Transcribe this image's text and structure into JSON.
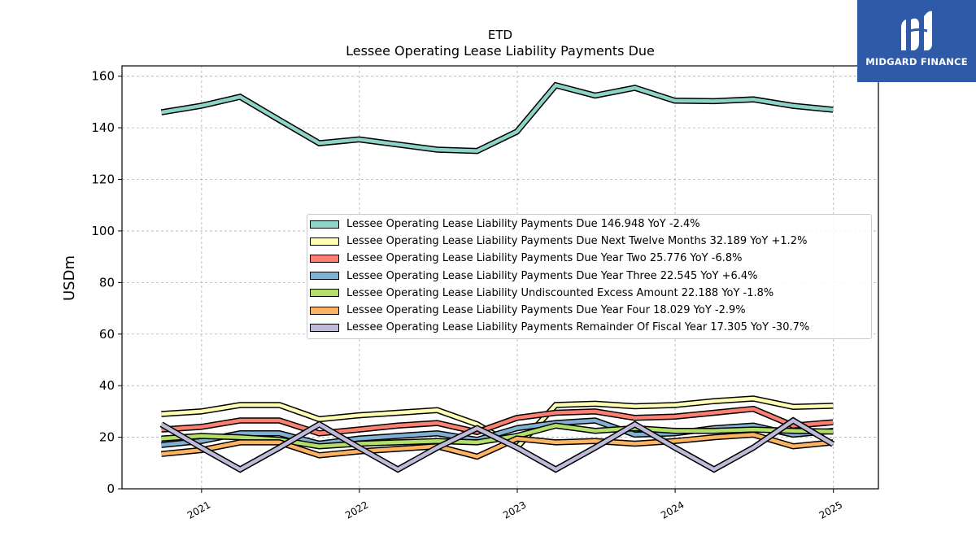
{
  "chart_data": {
    "type": "line",
    "title": "ETD",
    "subtitle": "Lessee Operating Lease Liability Payments Due",
    "ylabel": "USDm",
    "xlabel": "",
    "ylim": [
      0,
      164
    ],
    "xlim": [
      "2020-07-01",
      "2025-04-15"
    ],
    "yticks": [
      0,
      20,
      40,
      60,
      80,
      100,
      120,
      140,
      160
    ],
    "xticks": [
      {
        "label": "2021",
        "date": "2021-01-01"
      },
      {
        "label": "2022",
        "date": "2022-01-01"
      },
      {
        "label": "2023",
        "date": "2023-01-01"
      },
      {
        "label": "2024",
        "date": "2024-01-01"
      },
      {
        "label": "2025",
        "date": "2025-01-01"
      }
    ],
    "grid": true,
    "legend_position": "center-right",
    "x": [
      "2020-09-30",
      "2020-12-31",
      "2021-03-31",
      "2021-06-30",
      "2021-09-30",
      "2021-12-31",
      "2022-03-31",
      "2022-06-30",
      "2022-09-30",
      "2022-12-31",
      "2023-03-31",
      "2023-06-30",
      "2023-09-30",
      "2023-12-31",
      "2024-03-31",
      "2024-06-30",
      "2024-09-30",
      "2024-12-31"
    ],
    "series": [
      {
        "name": "Lessee Operating Lease Liability Payments Due",
        "legend": "Lessee Operating Lease Liability Payments Due  146.948 YoY -2.4%",
        "color": "#8dd3c7",
        "values": [
          146.0,
          148.5,
          152.0,
          143.0,
          134.0,
          135.5,
          133.5,
          131.5,
          131.0,
          138.5,
          156.5,
          152.5,
          155.5,
          150.5,
          150.3,
          151.0,
          148.5,
          147.0
        ]
      },
      {
        "name": "Lessee Operating Lease Liability Payments Due Next Twelve Months",
        "legend": "Lessee Operating Lease Liability Payments Due Next Twelve Months  32.189 YoY +1.2%",
        "color": "#ffffb3",
        "values": [
          29.0,
          30.0,
          32.5,
          32.5,
          27.0,
          28.5,
          29.5,
          30.5,
          25.0,
          16.0,
          32.5,
          33.0,
          32.0,
          32.5,
          34.0,
          35.0,
          31.8,
          32.2
        ]
      },
      {
        "name": "Lessee Operating Lease Liability Payments Due Year Two",
        "legend": "Lessee Operating Lease Liability Payments Due Year Two  25.776 YoY -6.8%",
        "color": "#fb8072",
        "values": [
          23.0,
          24.0,
          26.5,
          26.5,
          21.5,
          23.0,
          24.5,
          25.5,
          22.0,
          27.5,
          29.5,
          30.0,
          27.5,
          28.0,
          29.5,
          31.0,
          24.5,
          25.8
        ]
      },
      {
        "name": "Lessee Operating Lease Liability Payments Due Year Three",
        "legend": "Lessee Operating Lease Liability Payments Due Year Three  22.545 YoY +6.4%",
        "color": "#80b1d3",
        "values": [
          17.0,
          18.5,
          21.5,
          21.5,
          17.5,
          19.5,
          20.5,
          21.5,
          19.0,
          23.5,
          25.5,
          26.5,
          21.0,
          21.5,
          23.5,
          24.5,
          21.0,
          22.5
        ]
      },
      {
        "name": "Lessee Operating Lease Liability Undiscounted Excess Amount",
        "legend": "Lessee Operating Lease Liability Undiscounted Excess Amount  22.188 YoY -1.8%",
        "color": "#b3de69",
        "values": [
          19.5,
          20.5,
          20.0,
          19.0,
          16.5,
          17.5,
          18.0,
          18.5,
          18.0,
          20.5,
          24.5,
          22.5,
          23.5,
          22.5,
          22.5,
          23.0,
          22.5,
          22.2
        ]
      },
      {
        "name": "Lessee Operating Lease Liability Payments Due Year Four",
        "legend": "Lessee Operating Lease Liability Payments Due Year Four  18.029 YoY -2.9%",
        "color": "#fdb462",
        "values": [
          13.5,
          15.0,
          18.0,
          18.0,
          13.0,
          14.5,
          15.5,
          16.5,
          12.5,
          19.5,
          18.0,
          18.5,
          17.5,
          18.5,
          20.0,
          21.0,
          16.5,
          18.0
        ]
      },
      {
        "name": "Lessee Operating Lease Liability Payments Remainder Of Fiscal Year",
        "legend": "Lessee Operating Lease Liability Payments Remainder Of Fiscal Year  17.305 YoY -30.7%",
        "color": "#bebada",
        "values": [
          25.0,
          16.0,
          7.5,
          16.0,
          25.0,
          16.0,
          7.5,
          16.0,
          23.5,
          16.0,
          7.5,
          16.0,
          25.0,
          16.0,
          7.5,
          16.0,
          26.5,
          17.3
        ]
      }
    ]
  },
  "logo": {
    "text": "MIDGARD FINANCE"
  }
}
